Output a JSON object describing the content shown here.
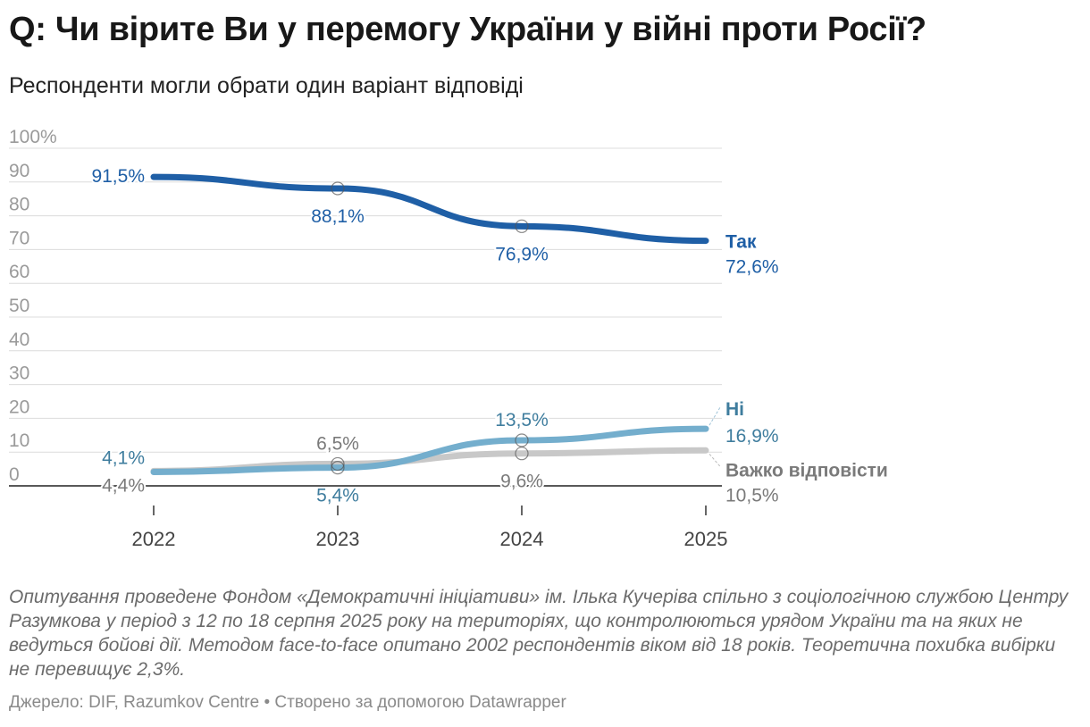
{
  "title": "Q: Чи вірите Ви у перемогу України у війні проти Росії?",
  "subtitle": "Респонденти могли обрати один варіант відповіді",
  "chart_data": {
    "type": "line",
    "x": [
      "2022",
      "2023",
      "2024",
      "2025"
    ],
    "ylim": [
      0,
      100
    ],
    "yticks": [
      0,
      10,
      20,
      30,
      40,
      50,
      60,
      70,
      80,
      90,
      100
    ],
    "ytick_labels": [
      "0",
      "10",
      "20",
      "30",
      "40",
      "50",
      "60",
      "70",
      "80",
      "90",
      "100%"
    ],
    "grid": true,
    "series": [
      {
        "name": "Важко відповісти",
        "color": "#c8c8c8",
        "label_color": "#7a7a7a",
        "values": [
          4.4,
          6.5,
          9.6,
          10.5
        ],
        "value_labels": [
          "4,4%",
          "6,5%",
          "9,6%",
          "10,5%"
        ]
      },
      {
        "name": "Ні",
        "color": "#74aecd",
        "label_color": "#3f7d9e",
        "values": [
          4.1,
          5.4,
          13.5,
          16.9
        ],
        "value_labels": [
          "4,1%",
          "5,4%",
          "13,5%",
          "16,9%"
        ]
      },
      {
        "name": "Так",
        "color": "#1f5fa6",
        "label_color": "#1f5fa6",
        "values": [
          91.5,
          88.1,
          76.9,
          72.6
        ],
        "value_labels": [
          "91,5%",
          "88,1%",
          "76,9%",
          "72,6%"
        ]
      }
    ]
  },
  "notes": "Опитування проведене Фондом «Демократичні ініціативи» ім. Ілька Кучеріва спільно з соціологічною службою Центру Разумкова у період з 12 по 18 серпня 2025 року на територіях, що контролюються урядом України та на яких не ведуться бойові дії. Методом face-to-face опитано 2002 респондентів віком від 18 років. Теоретична похибка вибірки не перевищує 2,3%.",
  "source": "Джерело: DIF, Razumkov Centre • Створено за допомогою Datawrapper"
}
